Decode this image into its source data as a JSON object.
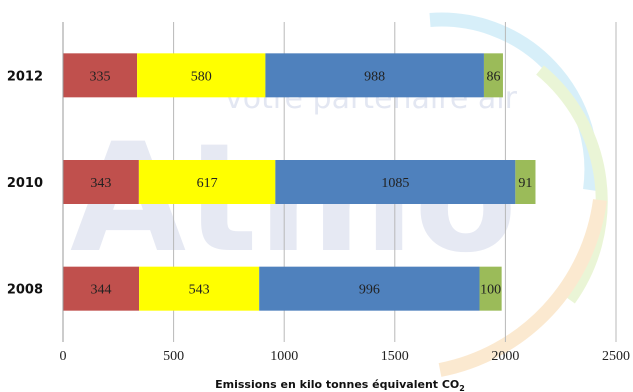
{
  "chart_data": {
    "type": "bar",
    "orientation": "horizontal",
    "stacked": true,
    "categories": [
      "2012",
      "2010",
      "2008"
    ],
    "series": [
      {
        "values": [
          335,
          343,
          344
        ],
        "color": "#c0504d"
      },
      {
        "values": [
          580,
          617,
          543
        ],
        "color": "#ffff00"
      },
      {
        "values": [
          988,
          1085,
          996
        ],
        "color": "#4f81bd"
      },
      {
        "values": [
          86,
          91,
          100
        ],
        "color": "#9bbb59"
      }
    ],
    "xlim": [
      0,
      2500
    ],
    "x_ticks": [
      "0",
      "500",
      "1000",
      "1500",
      "2000",
      "2500"
    ],
    "xlabel_main": "Emissions en kilo tonnes équivalent CO",
    "xlabel_sub": "2",
    "grid": "vertical"
  },
  "watermark": {
    "brand": "Atmo",
    "tagline": "votre partenaire air",
    "color": "#7f8fc4"
  }
}
